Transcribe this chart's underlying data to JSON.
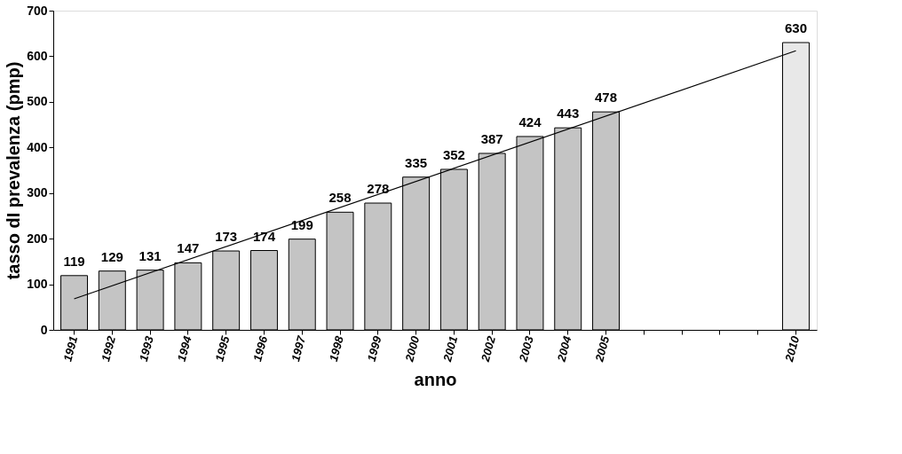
{
  "chart_data": {
    "type": "bar",
    "xlabel": "anno",
    "ylabel": "tasso dI prevalenza (pmp)",
    "categories": [
      "1991",
      "1992",
      "1993",
      "1994",
      "1995",
      "1996",
      "1997",
      "1998",
      "1999",
      "2000",
      "2001",
      "2002",
      "2003",
      "2004",
      "2005",
      null,
      null,
      null,
      null,
      "2010"
    ],
    "series": [
      {
        "values": [
          119,
          129,
          131,
          147,
          173,
          174,
          199,
          258,
          278,
          335,
          352,
          387,
          424,
          443,
          478,
          null,
          null,
          null,
          null,
          630
        ],
        "value_labels": [
          "119",
          "129",
          "131",
          "147",
          "173",
          "174",
          "199",
          "258",
          "278",
          "335",
          "352",
          "387",
          "424",
          "443",
          "478",
          null,
          null,
          null,
          null,
          "630"
        ],
        "colors": [
          "#c4c4c4",
          "#c4c4c4",
          "#c4c4c4",
          "#c4c4c4",
          "#c4c4c4",
          "#c4c4c4",
          "#c4c4c4",
          "#c4c4c4",
          "#c4c4c4",
          "#c4c4c4",
          "#c4c4c4",
          "#c4c4c4",
          "#c4c4c4",
          "#c4c4c4",
          "#c4c4c4",
          null,
          null,
          null,
          null,
          "#e8e8e8"
        ]
      },
      {
        "type": "line",
        "color": "#000000",
        "values": [
          68,
          null,
          null,
          null,
          null,
          null,
          null,
          null,
          null,
          null,
          null,
          null,
          null,
          null,
          null,
          null,
          null,
          null,
          null,
          612
        ]
      }
    ],
    "ylim": [
      0,
      700
    ],
    "yticks": [
      0,
      100,
      200,
      300,
      400,
      500,
      600,
      700
    ],
    "grid": false
  }
}
